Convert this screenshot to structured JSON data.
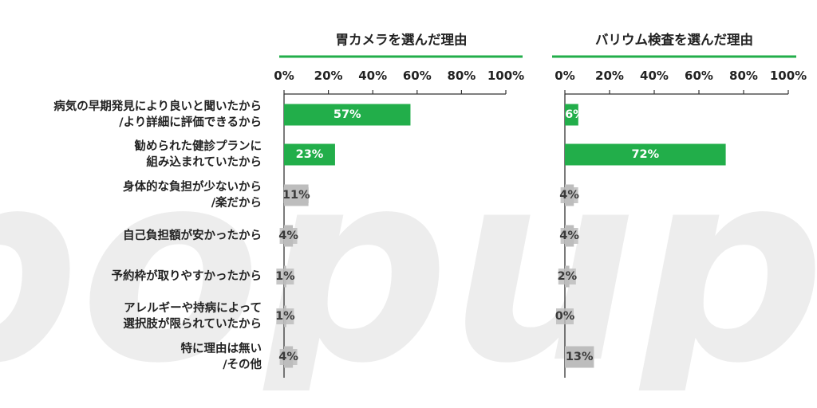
{
  "colors": {
    "highlight_bar": "#22ae4a",
    "minor_bar": "#bdbdbd",
    "axis": "#333333",
    "text": "#222222",
    "watermark": "#ededed"
  },
  "watermark_text": "popup.",
  "chart_data": [
    {
      "type": "bar",
      "orientation": "horizontal",
      "title": "胃カメラを選んだ理由",
      "categories": [
        "病気の早期発見により良いと聞いたから/より詳細に評価できるから",
        "勧められた健診プランに組み込まれていたから",
        "身体的な負担が少ないから/楽だから",
        "自己負担額が安かったから",
        "予約枠が取りやすかったから",
        "アレルギーや持病によって選択肢が限られていたから",
        "特に理由は無い/その他"
      ],
      "values": [
        57,
        23,
        11,
        4,
        1,
        1,
        4
      ],
      "value_labels": [
        "57%",
        "23%",
        "11%",
        "4%",
        "1%",
        "1%",
        "4%"
      ],
      "xlim": [
        0,
        100
      ],
      "ticks": [
        "0%",
        "20%",
        "40%",
        "60%",
        "80%",
        "100%"
      ],
      "highlighted": [
        true,
        true,
        false,
        false,
        false,
        false,
        false
      ]
    },
    {
      "type": "bar",
      "orientation": "horizontal",
      "title": "バリウム検査を選んだ理由",
      "categories": [
        "病気の早期発見により良いと聞いたから/より詳細に評価できるから",
        "勧められた健診プランに組み込まれていたから",
        "身体的な負担が少ないから/楽だから",
        "自己負担額が安かったから",
        "予約枠が取りやすかったから",
        "アレルギーや持病によって選択肢が限られていたから",
        "特に理由は無い/その他"
      ],
      "values": [
        6,
        72,
        4,
        4,
        2,
        0,
        13
      ],
      "value_labels": [
        "6%",
        "72%",
        "4%",
        "4%",
        "2%",
        "0%",
        "13%"
      ],
      "xlim": [
        0,
        100
      ],
      "ticks": [
        "0%",
        "20%",
        "40%",
        "60%",
        "80%",
        "100%"
      ],
      "highlighted": [
        true,
        true,
        false,
        false,
        false,
        false,
        false
      ]
    }
  ],
  "category_lines": [
    [
      "病気の早期発見により良いと聞いたから",
      "/より詳細に評価できるから"
    ],
    [
      "勧められた健診プランに",
      "組み込まれていたから"
    ],
    [
      "身体的な負担が少ないから",
      "/楽だから"
    ],
    [
      "自己負担額が安かったから"
    ],
    [
      "予約枠が取りやすかったから"
    ],
    [
      "アレルギーや持病によって",
      "選択肢が限られていたから"
    ],
    [
      "特に理由は無い",
      "/その他"
    ]
  ]
}
